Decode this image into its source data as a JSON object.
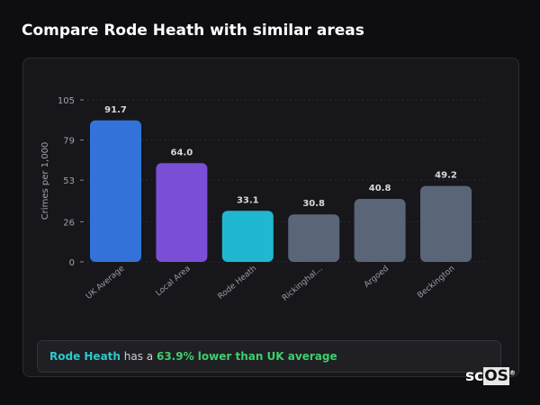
{
  "title": "Compare Rode Heath with similar areas",
  "chart_data": {
    "type": "bar",
    "ylabel": "Crimes per 1,000",
    "ylim": [
      0,
      105
    ],
    "yticks": [
      0,
      26,
      53,
      79,
      105
    ],
    "grid": true,
    "categories": [
      "UK Average",
      "Local Area",
      "Rode Heath",
      "Rickinghal...",
      "Argoed",
      "Beckington"
    ],
    "values": [
      91.7,
      64.0,
      33.1,
      30.8,
      40.8,
      49.2
    ],
    "value_labels": [
      "91.7",
      "64.0",
      "33.1",
      "30.8",
      "40.8",
      "49.2"
    ],
    "colors": [
      "#3373d9",
      "#7a4fd6",
      "#20b8d0",
      "#5a6577",
      "#5a6577",
      "#5a6577"
    ]
  },
  "summary": {
    "area": "Rode Heath",
    "middle": " has a ",
    "comparison": "63.9% lower than UK average"
  },
  "logo": {
    "text_a": "sc",
    "text_b": "OS",
    "mark": "®"
  }
}
